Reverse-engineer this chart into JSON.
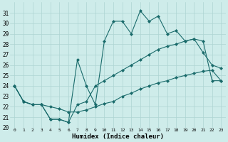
{
  "xlabel": "Humidex (Indice chaleur)",
  "xlim": [
    -0.5,
    23.5
  ],
  "ylim": [
    20,
    32
  ],
  "yticks": [
    20,
    21,
    22,
    23,
    24,
    25,
    26,
    27,
    28,
    29,
    30,
    31
  ],
  "xticks": [
    0,
    1,
    2,
    3,
    4,
    5,
    6,
    7,
    8,
    9,
    10,
    11,
    12,
    13,
    14,
    15,
    16,
    17,
    18,
    19,
    20,
    21,
    22,
    23
  ],
  "background_color": "#ceecea",
  "grid_color": "#aed4d2",
  "line_color": "#1a6b6b",
  "line1_x": [
    0,
    1,
    2,
    3,
    4,
    5,
    6,
    7,
    8,
    9,
    10,
    11,
    12,
    13,
    14,
    15,
    16,
    17,
    18,
    19,
    20,
    21,
    22,
    23
  ],
  "line1_y": [
    24.0,
    22.5,
    22.2,
    22.2,
    20.8,
    20.8,
    20.5,
    26.5,
    24.0,
    22.2,
    28.3,
    30.2,
    30.2,
    29.0,
    31.2,
    30.2,
    30.7,
    29.0,
    29.3,
    28.3,
    28.5,
    27.2,
    26.0,
    25.7
  ],
  "line2_x": [
    0,
    1,
    2,
    3,
    4,
    5,
    6,
    7,
    8,
    9,
    10,
    11,
    12,
    13,
    14,
    15,
    16,
    17,
    18,
    19,
    20,
    21,
    22,
    23
  ],
  "line2_y": [
    24.0,
    22.5,
    22.2,
    22.2,
    20.8,
    20.8,
    20.5,
    22.2,
    22.5,
    24.0,
    24.5,
    25.0,
    25.5,
    26.0,
    26.5,
    27.0,
    27.5,
    27.8,
    28.0,
    28.3,
    28.5,
    28.3,
    24.5,
    24.5
  ],
  "line3_x": [
    0,
    1,
    2,
    3,
    4,
    5,
    6,
    7,
    8,
    9,
    10,
    11,
    12,
    13,
    14,
    15,
    16,
    17,
    18,
    19,
    20,
    21,
    22,
    23
  ],
  "line3_y": [
    24.0,
    22.5,
    22.2,
    22.2,
    22.0,
    21.8,
    21.5,
    21.5,
    21.7,
    22.0,
    22.3,
    22.5,
    23.0,
    23.3,
    23.7,
    24.0,
    24.3,
    24.5,
    24.8,
    25.0,
    25.2,
    25.4,
    25.5,
    24.5
  ]
}
